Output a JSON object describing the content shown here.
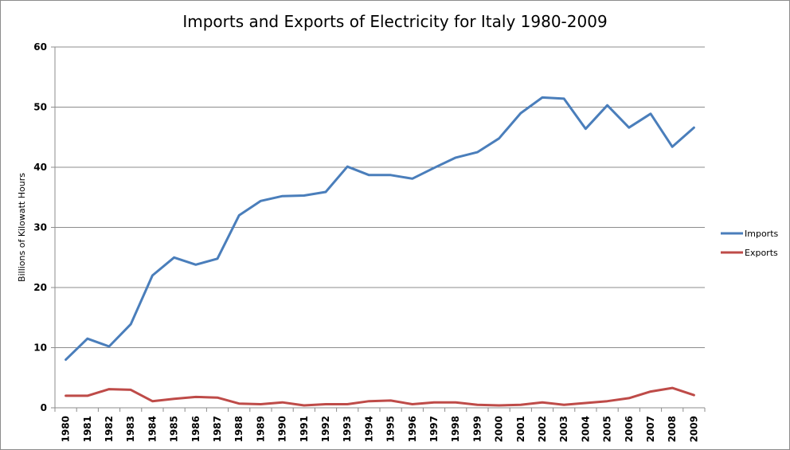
{
  "chart_data": {
    "type": "line",
    "title": "Imports and Exports of Electricity for Italy 1980-2009",
    "xlabel": "",
    "ylabel": "Billions of Kilowatt Hours",
    "ylim": [
      0,
      60
    ],
    "yticks": [
      0,
      10,
      20,
      30,
      40,
      50,
      60
    ],
    "grid": true,
    "legend_position": "right",
    "categories": [
      "1980",
      "1981",
      "1982",
      "1983",
      "1984",
      "1985",
      "1986",
      "1987",
      "1988",
      "1989",
      "1990",
      "1991",
      "1992",
      "1993",
      "1994",
      "1995",
      "1996",
      "1997",
      "1998",
      "1999",
      "2000",
      "2001",
      "2002",
      "2003",
      "2004",
      "2005",
      "2006",
      "2007",
      "2008",
      "2009"
    ],
    "series": [
      {
        "name": "Imports",
        "color": "#4a7ebb",
        "values": [
          8.0,
          11.5,
          10.2,
          13.9,
          22.0,
          25.0,
          23.8,
          24.8,
          32.0,
          34.4,
          35.2,
          35.3,
          35.9,
          40.1,
          38.7,
          38.7,
          38.1,
          39.9,
          41.6,
          42.5,
          44.8,
          49.0,
          51.6,
          51.4,
          46.4,
          50.3,
          46.6,
          48.9,
          43.4,
          46.6
        ]
      },
      {
        "name": "Exports",
        "color": "#be4b48",
        "values": [
          2.0,
          2.0,
          3.1,
          3.0,
          1.1,
          1.5,
          1.8,
          1.7,
          0.7,
          0.6,
          0.9,
          0.4,
          0.6,
          0.6,
          1.1,
          1.2,
          0.6,
          0.9,
          0.9,
          0.5,
          0.4,
          0.5,
          0.9,
          0.5,
          0.8,
          1.1,
          1.6,
          2.7,
          3.3,
          2.1
        ]
      }
    ]
  }
}
